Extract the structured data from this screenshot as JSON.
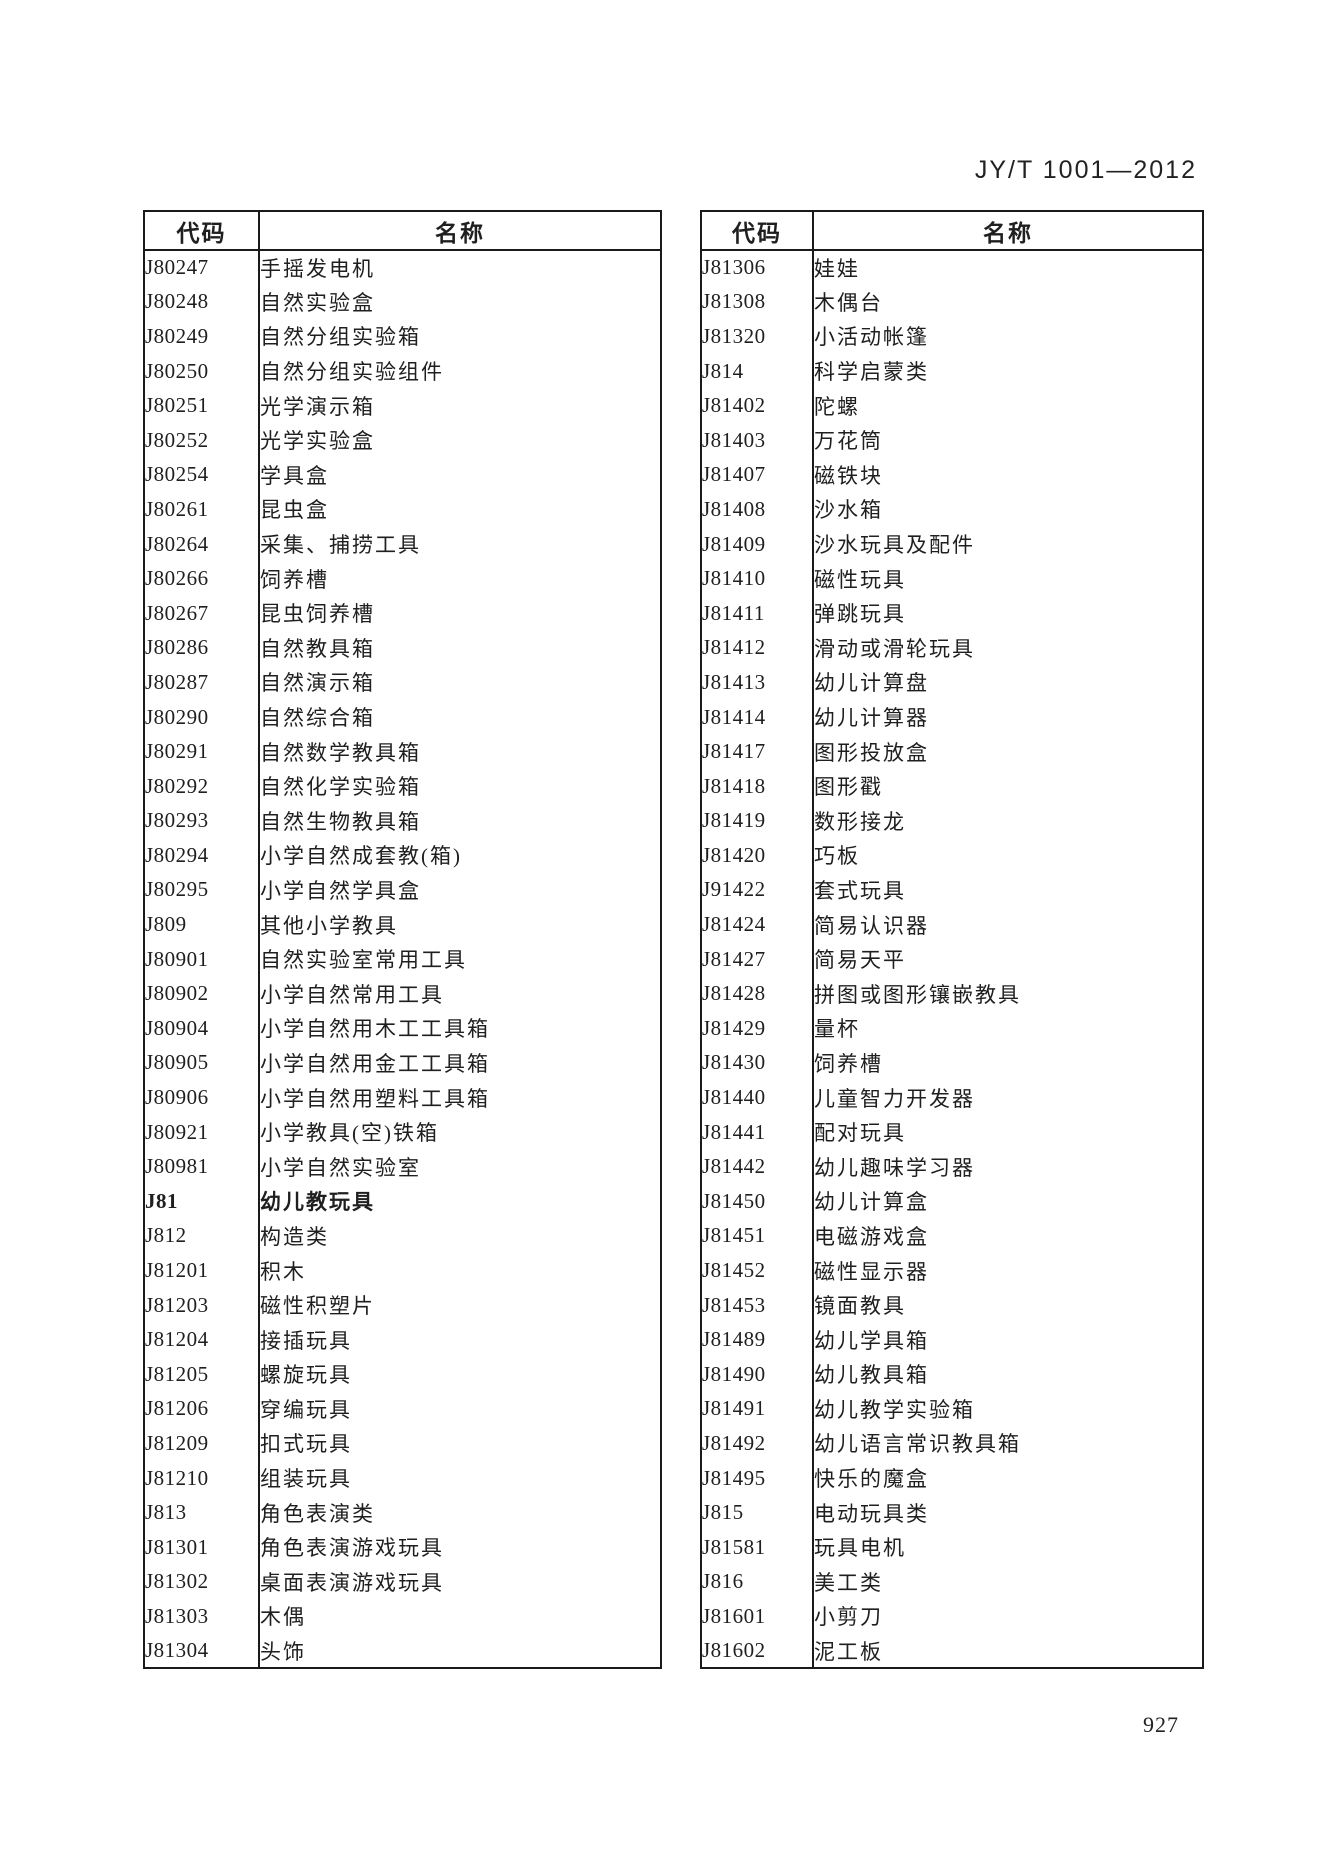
{
  "page": {
    "standard_number": "JY/T 1001—2012",
    "page_number": "927"
  },
  "left_table": {
    "headers": {
      "code": "代码",
      "name": "名称"
    },
    "rows": [
      {
        "code": "J80247",
        "name": "手摇发电机"
      },
      {
        "code": "J80248",
        "name": "自然实验盒"
      },
      {
        "code": "J80249",
        "name": "自然分组实验箱"
      },
      {
        "code": "J80250",
        "name": "自然分组实验组件"
      },
      {
        "code": "J80251",
        "name": "光学演示箱"
      },
      {
        "code": "J80252",
        "name": "光学实验盒"
      },
      {
        "code": "J80254",
        "name": "学具盒"
      },
      {
        "code": "J80261",
        "name": "昆虫盒"
      },
      {
        "code": "J80264",
        "name": "采集、捕捞工具"
      },
      {
        "code": "J80266",
        "name": "饲养槽"
      },
      {
        "code": "J80267",
        "name": "昆虫饲养槽"
      },
      {
        "code": "J80286",
        "name": "自然教具箱"
      },
      {
        "code": "J80287",
        "name": "自然演示箱"
      },
      {
        "code": "J80290",
        "name": "自然综合箱"
      },
      {
        "code": "J80291",
        "name": "自然数学教具箱"
      },
      {
        "code": "J80292",
        "name": "自然化学实验箱"
      },
      {
        "code": "J80293",
        "name": "自然生物教具箱"
      },
      {
        "code": "J80294",
        "name": "小学自然成套教(箱)"
      },
      {
        "code": "J80295",
        "name": "小学自然学具盒"
      },
      {
        "code": "J809",
        "name": "其他小学教具"
      },
      {
        "code": "J80901",
        "name": "自然实验室常用工具"
      },
      {
        "code": "J80902",
        "name": "小学自然常用工具"
      },
      {
        "code": "J80904",
        "name": "小学自然用木工工具箱"
      },
      {
        "code": "J80905",
        "name": "小学自然用金工工具箱"
      },
      {
        "code": "J80906",
        "name": "小学自然用塑料工具箱"
      },
      {
        "code": "J80921",
        "name": "小学教具(空)铁箱"
      },
      {
        "code": "J80981",
        "name": "小学自然实验室"
      },
      {
        "code": "J81",
        "name": "幼儿教玩具",
        "bold": true
      },
      {
        "code": "J812",
        "name": "构造类"
      },
      {
        "code": "J81201",
        "name": "积木"
      },
      {
        "code": "J81203",
        "name": "磁性积塑片"
      },
      {
        "code": "J81204",
        "name": "接插玩具"
      },
      {
        "code": "J81205",
        "name": "螺旋玩具"
      },
      {
        "code": "J81206",
        "name": "穿编玩具"
      },
      {
        "code": "J81209",
        "name": "扣式玩具"
      },
      {
        "code": "J81210",
        "name": "组装玩具"
      },
      {
        "code": "J813",
        "name": "角色表演类"
      },
      {
        "code": "J81301",
        "name": "角色表演游戏玩具"
      },
      {
        "code": "J81302",
        "name": "桌面表演游戏玩具"
      },
      {
        "code": "J81303",
        "name": "木偶"
      },
      {
        "code": "J81304",
        "name": "头饰"
      }
    ]
  },
  "right_table": {
    "headers": {
      "code": "代码",
      "name": "名称"
    },
    "rows": [
      {
        "code": "J81306",
        "name": "娃娃"
      },
      {
        "code": "J81308",
        "name": "木偶台"
      },
      {
        "code": "J81320",
        "name": "小活动帐篷"
      },
      {
        "code": "J814",
        "name": "科学启蒙类"
      },
      {
        "code": "J81402",
        "name": "陀螺"
      },
      {
        "code": "J81403",
        "name": "万花筒"
      },
      {
        "code": "J81407",
        "name": "磁铁块"
      },
      {
        "code": "J81408",
        "name": "沙水箱"
      },
      {
        "code": "J81409",
        "name": "沙水玩具及配件"
      },
      {
        "code": "J81410",
        "name": "磁性玩具"
      },
      {
        "code": "J81411",
        "name": "弹跳玩具"
      },
      {
        "code": "J81412",
        "name": "滑动或滑轮玩具"
      },
      {
        "code": "J81413",
        "name": "幼儿计算盘"
      },
      {
        "code": "J81414",
        "name": "幼儿计算器"
      },
      {
        "code": "J81417",
        "name": "图形投放盒"
      },
      {
        "code": "J81418",
        "name": "图形戳"
      },
      {
        "code": "J81419",
        "name": "数形接龙"
      },
      {
        "code": "J81420",
        "name": "巧板"
      },
      {
        "code": "J91422",
        "name": "套式玩具"
      },
      {
        "code": "J81424",
        "name": "简易认识器"
      },
      {
        "code": "J81427",
        "name": "简易天平"
      },
      {
        "code": "J81428",
        "name": "拼图或图形镶嵌教具"
      },
      {
        "code": "J81429",
        "name": "量杯"
      },
      {
        "code": "J81430",
        "name": "饲养槽"
      },
      {
        "code": "J81440",
        "name": "儿童智力开发器"
      },
      {
        "code": "J81441",
        "name": "配对玩具"
      },
      {
        "code": "J81442",
        "name": "幼儿趣味学习器"
      },
      {
        "code": "J81450",
        "name": "幼儿计算盒"
      },
      {
        "code": "J81451",
        "name": "电磁游戏盒"
      },
      {
        "code": "J81452",
        "name": "磁性显示器"
      },
      {
        "code": "J81453",
        "name": "镜面教具"
      },
      {
        "code": "J81489",
        "name": "幼儿学具箱"
      },
      {
        "code": "J81490",
        "name": "幼儿教具箱"
      },
      {
        "code": "J81491",
        "name": "幼儿教学实验箱"
      },
      {
        "code": "J81492",
        "name": "幼儿语言常识教具箱"
      },
      {
        "code": "J81495",
        "name": "快乐的魔盒"
      },
      {
        "code": "J815",
        "name": "电动玩具类"
      },
      {
        "code": "J81581",
        "name": "玩具电机"
      },
      {
        "code": "J816",
        "name": "美工类"
      },
      {
        "code": "J81601",
        "name": "小剪刀"
      },
      {
        "code": "J81602",
        "name": "泥工板"
      }
    ]
  }
}
